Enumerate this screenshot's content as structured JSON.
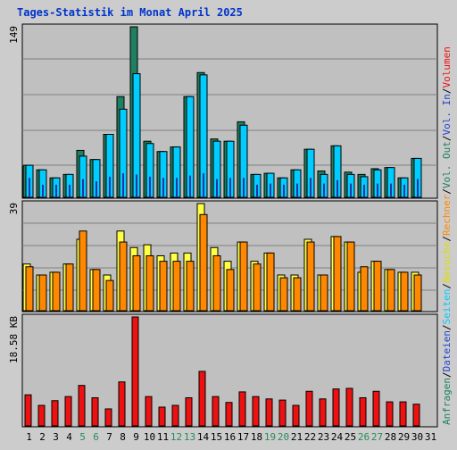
{
  "title": "Tages-Statistik im Monat April 2025",
  "colors": {
    "background": "#cccccc",
    "plot": "#c0c0c0",
    "title": "#0033cc",
    "anfragen": "#1e8060",
    "dateien": "#00ccff",
    "seiten": "#2233aa",
    "besuche": "#ffff44",
    "rechner": "#ff8800",
    "volumen": "#ee1111",
    "blue_label": "#2244cc",
    "teal_label": "#1e8060",
    "weekend_day": "#2a8a5a",
    "dark_text": "#000000"
  },
  "chart_data": [
    {
      "type": "bar",
      "name": "hits",
      "ymax_label": "149",
      "ylim": [
        0,
        149
      ],
      "categories": [
        "1",
        "2",
        "3",
        "4",
        "5",
        "6",
        "7",
        "8",
        "9",
        "10",
        "11",
        "12",
        "13",
        "14",
        "15",
        "16",
        "17",
        "18",
        "19",
        "20",
        "21",
        "22",
        "23",
        "24",
        "25",
        "26",
        "27",
        "28",
        "29",
        "30",
        "31"
      ],
      "series": [
        {
          "name": "Anfragen",
          "values": [
            28,
            24,
            17,
            20,
            41,
            33,
            55,
            88,
            149,
            49,
            40,
            44,
            88,
            109,
            51,
            49,
            66,
            20,
            21,
            17,
            24,
            42,
            23,
            45,
            22,
            20,
            25,
            26,
            17,
            34,
            0
          ]
        },
        {
          "name": "Dateien",
          "values": [
            28,
            24,
            17,
            20,
            36,
            33,
            55,
            77,
            108,
            47,
            40,
            44,
            88,
            107,
            49,
            49,
            63,
            20,
            21,
            17,
            24,
            42,
            20,
            45,
            20,
            18,
            24,
            26,
            17,
            34,
            0
          ]
        },
        {
          "name": "Seiten",
          "values": [
            17,
            11,
            11,
            11,
            16,
            14,
            18,
            21,
            20,
            18,
            17,
            17,
            19,
            21,
            16,
            17,
            17,
            11,
            12,
            11,
            12,
            17,
            12,
            15,
            12,
            11,
            12,
            12,
            11,
            16,
            0
          ]
        }
      ]
    },
    {
      "type": "bar",
      "name": "visits",
      "ymax_label": "39",
      "ylim": [
        0,
        39
      ],
      "series": [
        {
          "name": "Besuche",
          "values": [
            17,
            13,
            14,
            17,
            26,
            15,
            13,
            29,
            23,
            24,
            20,
            21,
            21,
            39,
            23,
            18,
            25,
            18,
            21,
            13,
            13,
            26,
            13,
            27,
            25,
            14,
            18,
            15,
            14,
            14,
            0
          ]
        },
        {
          "name": "Rechner",
          "values": [
            16,
            13,
            14,
            17,
            29,
            15,
            11,
            25,
            20,
            20,
            18,
            18,
            18,
            35,
            20,
            15,
            25,
            17,
            21,
            12,
            12,
            25,
            13,
            27,
            25,
            16,
            18,
            15,
            14,
            13,
            0
          ]
        }
      ]
    },
    {
      "type": "bar",
      "name": "volume",
      "ymax_label": "18.58 KB",
      "ylim": [
        0,
        18.58
      ],
      "series": [
        {
          "name": "Volumen",
          "values": [
            5.3,
            3.5,
            4.3,
            5.0,
            6.9,
            4.8,
            2.9,
            7.5,
            18.58,
            5.0,
            3.2,
            3.5,
            4.8,
            9.3,
            5.0,
            4.0,
            5.8,
            5.0,
            4.6,
            4.4,
            3.5,
            5.9,
            4.6,
            6.3,
            6.4,
            4.8,
            5.9,
            4.1,
            4.1,
            3.7,
            0
          ]
        }
      ]
    }
  ],
  "right_axis": [
    {
      "text": "Anfragen",
      "color": "#1e8060"
    },
    {
      "text": "/",
      "color": "#000000"
    },
    {
      "text": "Dateien",
      "color": "#2244cc"
    },
    {
      "text": "/",
      "color": "#000000"
    },
    {
      "text": "Seiten",
      "color": "#00ccff"
    },
    {
      "text": "/",
      "color": "#000000"
    },
    {
      "text": "Besuche",
      "color": "#dddd00"
    },
    {
      "text": "/",
      "color": "#000000"
    },
    {
      "text": "Rechner",
      "color": "#ff8800"
    },
    {
      "text": "/",
      "color": "#000000"
    },
    {
      "text": "Vol. Out",
      "color": "#1e8060"
    },
    {
      "text": "/",
      "color": "#000000"
    },
    {
      "text": "Vol. In",
      "color": "#2244cc"
    },
    {
      "text": "/",
      "color": "#000000"
    },
    {
      "text": "Volumen",
      "color": "#ee1111"
    }
  ],
  "weekend_days": [
    "5",
    "6",
    "12",
    "13",
    "19",
    "20",
    "26",
    "27"
  ]
}
